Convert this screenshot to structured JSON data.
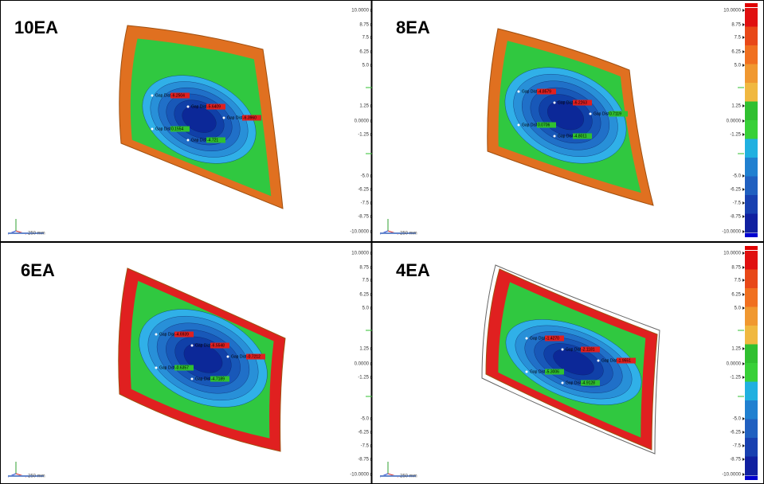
{
  "panels": [
    {
      "label": "10EA",
      "annotations": [
        {
          "name": "Gap Dist.",
          "value": "-6.2504"
        },
        {
          "name": "Gap Dist.",
          "value": "-5.6409"
        },
        {
          "name": "Gap Dist.",
          "value": "-6.3960"
        },
        {
          "name": "Gap Dist.",
          "value": "0.1554"
        },
        {
          "name": "Gap Dist.",
          "value": "-4.721"
        }
      ]
    },
    {
      "label": "8EA",
      "annotations": [
        {
          "name": "Gap Dist.",
          "value": "-4.8579"
        },
        {
          "name": "Gap Dist.",
          "value": "-6.2263"
        },
        {
          "name": "Gap Dist.",
          "value": "0.7119"
        },
        {
          "name": "Gap Dist.",
          "value": "0.0706"
        },
        {
          "name": "Gap Dist.",
          "value": "-4.8011"
        }
      ]
    },
    {
      "label": "6EA",
      "annotations": [
        {
          "name": "Gap Dist.",
          "value": "-4.6939"
        },
        {
          "name": "Gap Dist.",
          "value": "-6.5548"
        },
        {
          "name": "Gap Dist.",
          "value": "-0.7212"
        },
        {
          "name": "Gap Dist.",
          "value": "-0.6357"
        },
        {
          "name": "Gap Dist.",
          "value": "-4.7189"
        }
      ]
    },
    {
      "label": "4EA",
      "annotations": [
        {
          "name": "Gap Dist.",
          "value": "-1.4270"
        },
        {
          "name": "Gap Dist.",
          "value": "-2.1181"
        },
        {
          "name": "Gap Dist.",
          "value": "-1.9551"
        },
        {
          "name": "Gap Dist.",
          "value": "-5.3006"
        },
        {
          "name": "Gap Dist.",
          "value": "-4.9128"
        }
      ]
    }
  ],
  "colorbar_ticks": [
    "10.0000",
    "8.75",
    "7.5",
    "6.25",
    "5.0",
    "1.25",
    "0.0000",
    "-1.25",
    "-5.0",
    "-6.25",
    "-7.5",
    "-8.75",
    "-10.0000"
  ],
  "scale_label": "250 mm"
}
